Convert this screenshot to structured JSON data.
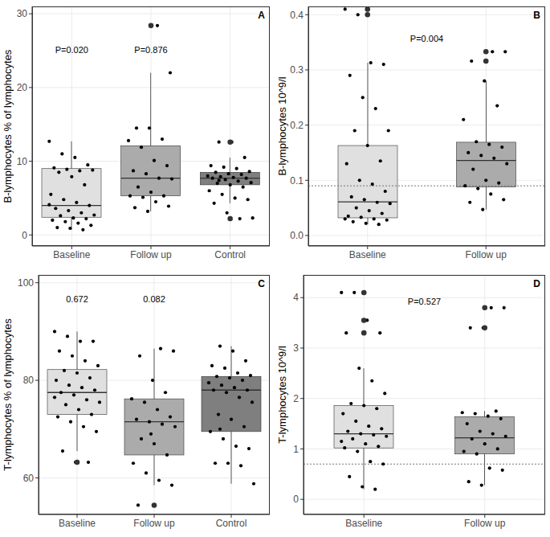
{
  "chart_data": [
    {
      "type": "box",
      "panel": "A",
      "y_label": "B-lymphocytes % of lymphocytes",
      "categories": [
        "Baseline",
        "Follow up",
        "Control"
      ],
      "colors": [
        "#e0e0e0",
        "#ababab",
        "#7f7f7f"
      ],
      "ylim": [
        -1.5,
        31
      ],
      "yticks": [
        0,
        10,
        20,
        30
      ],
      "grid": true,
      "boxes": [
        {
          "q1": 2.4,
          "median": 4.0,
          "q3": 9.0,
          "whisker_low": 0.7,
          "whisker_high": 12.7
        },
        {
          "q1": 5.3,
          "median": 7.7,
          "q3": 12.1,
          "whisker_low": 3.2,
          "whisker_high": 22
        },
        {
          "q1": 6.8,
          "median": 7.7,
          "q3": 8.5,
          "whisker_low": 4.3,
          "whisker_high": 10.5
        }
      ],
      "points": [
        [
          12.7,
          11,
          10.5,
          9.5,
          9.1,
          8.9,
          8.7,
          8.8,
          8.5,
          7.9,
          6.8,
          5.5,
          4.8,
          4.4,
          4.0,
          3.6,
          3.3,
          3.0,
          2.7,
          2.6,
          2.3,
          2.2,
          2.0,
          1.8,
          1.6,
          1.3,
          1.0,
          0.9,
          0.7,
          4.1
        ],
        [
          28.4,
          22,
          14.5,
          14.5,
          13,
          12.8,
          11.9,
          10.1,
          9.4,
          8.7,
          8.3,
          7.7,
          7.6,
          6.5,
          5.8,
          5.3,
          5.3,
          5.1,
          4.5,
          3.9,
          3.7,
          3.2
        ],
        [
          12.6,
          12.6,
          10.5,
          9.4,
          9.2,
          9.0,
          8.6,
          8.5,
          8.3,
          8.2,
          8.0,
          7.9,
          7.8,
          7.7,
          7.7,
          7.5,
          7.3,
          7.1,
          7.0,
          6.8,
          6.5,
          6.0,
          5.5,
          5.0,
          4.8,
          4.3,
          3.0,
          2.2,
          2.3,
          7.4
        ]
      ],
      "outliers": [
        [],
        [
          28.4
        ],
        [
          12.6,
          2.2
        ]
      ],
      "annotations": [
        {
          "x": 1,
          "y": 25,
          "text": "P=0.020"
        },
        {
          "x": 2,
          "y": 25,
          "text": "P=0.876"
        }
      ]
    },
    {
      "type": "box",
      "panel": "B",
      "y_label": "B-lymphocytes 10^9/l",
      "categories": [
        "Baseline",
        "Follow up"
      ],
      "colors": [
        "#e0e0e0",
        "#ababab"
      ],
      "ylim": [
        -0.019,
        0.415
      ],
      "yticks": [
        {
          "value": 0,
          "label": "0.0"
        },
        0.1,
        0.2,
        0.3,
        0.4
      ],
      "grid": true,
      "boxes": [
        {
          "q1": 0.032,
          "median": 0.061,
          "q3": 0.163,
          "whisker_low": 0.02,
          "whisker_high": 0.313
        },
        {
          "q1": 0.088,
          "median": 0.136,
          "q3": 0.169,
          "whisker_low": 0.047,
          "whisker_high": 0.28
        }
      ],
      "points": [
        [
          0.41,
          0.4,
          0.313,
          0.31,
          0.29,
          0.25,
          0.23,
          0.19,
          0.19,
          0.163,
          0.135,
          0.13,
          0.1,
          0.093,
          0.08,
          0.07,
          0.065,
          0.06,
          0.058,
          0.05,
          0.045,
          0.04,
          0.035,
          0.033,
          0.03,
          0.028,
          0.025,
          0.022,
          0.02,
          0.03
        ],
        [
          0.333,
          0.333,
          0.316,
          0.28,
          0.235,
          0.21,
          0.17,
          0.165,
          0.16,
          0.15,
          0.145,
          0.14,
          0.13,
          0.12,
          0.1,
          0.095,
          0.09,
          0.085,
          0.075,
          0.065,
          0.06,
          0.047
        ]
      ],
      "outliers": [
        [
          0.41,
          0.4
        ],
        [
          0.333,
          0.316
        ]
      ],
      "reference_line": 0.09,
      "annotations": [
        {
          "x": 1.5,
          "y": 0.355,
          "text": "P=0.004"
        }
      ]
    },
    {
      "type": "box",
      "panel": "C",
      "y_label": "T-lymphocytes % of lymphocytes",
      "categories": [
        "Baseline",
        "Follow up",
        "Control"
      ],
      "colors": [
        "#e0e0e0",
        "#ababab",
        "#7f7f7f"
      ],
      "ylim": [
        52.5,
        101.6
      ],
      "yticks": [
        60,
        80,
        100
      ],
      "grid": true,
      "boxes": [
        {
          "q1": 73,
          "median": 77.5,
          "q3": 82.2,
          "whisker_low": 65.5,
          "whisker_high": 90
        },
        {
          "q1": 64.7,
          "median": 71.5,
          "q3": 76.2,
          "whisker_low": 58.5,
          "whisker_high": 86.5
        },
        {
          "q1": 69.5,
          "median": 78,
          "q3": 80.8,
          "whisker_low": 58.8,
          "whisker_high": 87
        }
      ],
      "points": [
        [
          90,
          89,
          88,
          88,
          86,
          85,
          84,
          83,
          82,
          81.5,
          80.5,
          80,
          79,
          78.5,
          78,
          77.5,
          77,
          76,
          75.5,
          75,
          74,
          73,
          72.5,
          71.5,
          70.5,
          69.5,
          65.5,
          63.2,
          63.2,
          76.5
        ],
        [
          86.5,
          86,
          85,
          80,
          77.5,
          76.2,
          75.5,
          74,
          72.5,
          72,
          71.5,
          71,
          70.5,
          68,
          67,
          64.7,
          63,
          61,
          59.5,
          58.5,
          54.4,
          69
        ],
        [
          87,
          86,
          84,
          83,
          82.5,
          81.5,
          81,
          80.8,
          80.5,
          80,
          79.5,
          79,
          78.5,
          78,
          78,
          77.5,
          76.5,
          75.5,
          73,
          72,
          70.5,
          69.5,
          68,
          66.5,
          66,
          63,
          63,
          62.5,
          58.8,
          70
        ]
      ],
      "outliers": [
        [
          63.2
        ],
        [
          54.4
        ],
        []
      ],
      "annotations": [
        {
          "x": 1,
          "y": 96.5,
          "text": "0.672"
        },
        {
          "x": 2,
          "y": 96.5,
          "text": "0.082"
        }
      ]
    },
    {
      "type": "box",
      "panel": "D",
      "y_label": "T-lymphocytes 10^9/l",
      "categories": [
        "Baseline",
        "Follow up"
      ],
      "colors": [
        "#e0e0e0",
        "#ababab"
      ],
      "ylim": [
        -0.3,
        4.45
      ],
      "yticks": [
        0,
        1,
        2,
        3,
        4
      ],
      "grid": true,
      "boxes": [
        {
          "q1": 1.02,
          "median": 1.3,
          "q3": 1.86,
          "whisker_low": 0.2,
          "whisker_high": 2.6
        },
        {
          "q1": 0.9,
          "median": 1.22,
          "q3": 1.64,
          "whisker_low": 0.28,
          "whisker_high": 1.75
        }
      ],
      "points": [
        [
          4.1,
          4.1,
          3.55,
          3.3,
          3.3,
          2.6,
          2.35,
          2.1,
          1.9,
          1.86,
          1.8,
          1.7,
          1.55,
          1.45,
          1.4,
          1.35,
          1.3,
          1.28,
          1.25,
          1.2,
          1.1,
          1.05,
          1.02,
          0.95,
          0.75,
          0.7,
          0.45,
          0.25,
          0.2,
          1.15
        ],
        [
          3.8,
          3.8,
          3.4,
          3.4,
          1.75,
          1.72,
          1.7,
          1.65,
          1.6,
          1.5,
          1.35,
          1.3,
          1.25,
          1.2,
          1.1,
          1.0,
          0.95,
          0.9,
          0.62,
          0.58,
          0.35,
          0.28
        ]
      ],
      "outliers": [
        [
          4.1,
          3.55,
          3.3
        ],
        [
          3.8,
          3.4
        ]
      ],
      "reference_line": 0.7,
      "annotations": [
        {
          "x": 1.5,
          "y": 3.9,
          "text": "P=0.527"
        }
      ]
    }
  ]
}
